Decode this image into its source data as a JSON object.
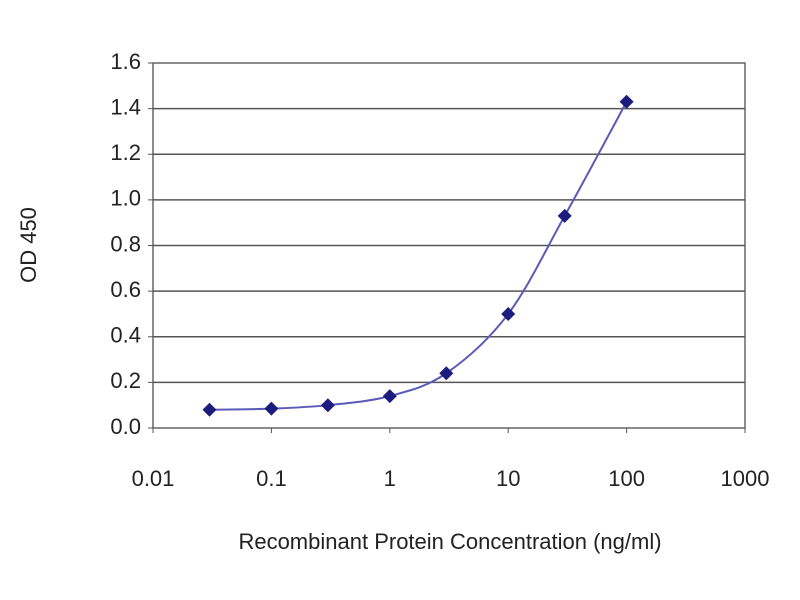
{
  "chart_data": {
    "type": "line",
    "x_label": "Recombinant Protein Concentration (ng/ml)",
    "y_label": "OD 450",
    "x": [
      0.03,
      0.1,
      0.3,
      1,
      3,
      10,
      30,
      100
    ],
    "series": [
      {
        "color": "#1c1c7e",
        "line_color": "#5a5ab8",
        "values": [
          0.08,
          0.085,
          0.1,
          0.14,
          0.24,
          0.5,
          0.93,
          1.43
        ]
      }
    ],
    "xlim": [
      0.01,
      1000
    ],
    "xticks": [
      0.01,
      0.1,
      1,
      10,
      100,
      1000
    ],
    "x_log": true,
    "ylim": [
      0,
      1.6
    ],
    "yticks": [
      {
        "value": 0,
        "label": "0.0"
      },
      0.2,
      0.4,
      0.6,
      0.8,
      {
        "value": 1,
        "label": "1.0"
      },
      1.2,
      1.4,
      1.6
    ],
    "grid": true,
    "marker": "diamond",
    "smooth": true
  }
}
